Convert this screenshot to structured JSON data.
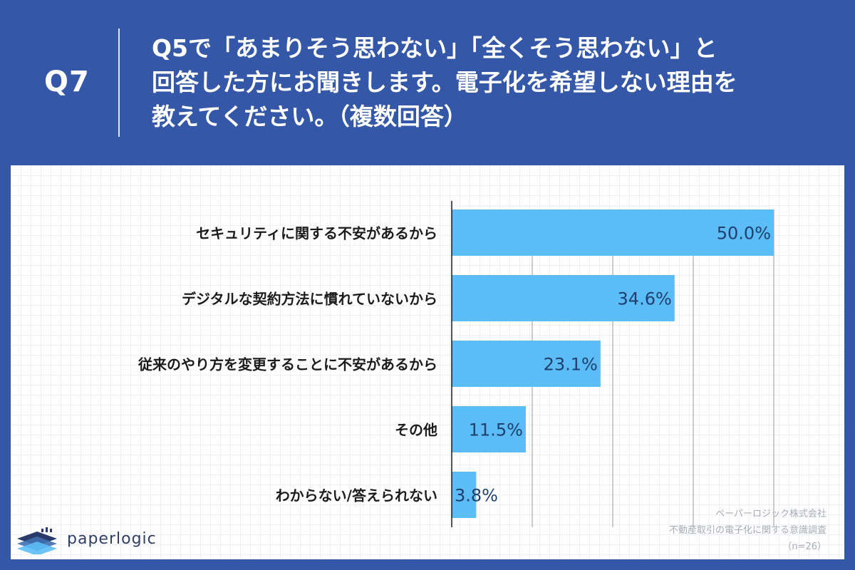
{
  "header": {
    "question_number": "Q7",
    "question_lines": [
      "Q5で「あまりそう思わない」「全くそう思わない」と",
      "回答した方にお聞きします。電子化を希望しない理由を",
      "教えてください。（複数回答）"
    ]
  },
  "chart_data": {
    "type": "bar",
    "orientation": "horizontal",
    "categories": [
      "セキュリティに関する不安があるから",
      "デジタルな契約方法に慣れていないから",
      "従来のやり方を変更することに不安があるから",
      "その他",
      "わからない/答えられない"
    ],
    "values": [
      50.0,
      34.6,
      23.1,
      11.5,
      3.8
    ],
    "value_labels": [
      "50.0%",
      "34.6%",
      "23.1%",
      "11.5%",
      "3.8%"
    ],
    "unit": "%",
    "xlim": [
      0,
      50
    ],
    "grid": true,
    "bar_color": "#5bbcf6",
    "label_color": "#1f3f6e"
  },
  "logo": {
    "text": "paperlogic"
  },
  "source": {
    "company": "ペーパーロジック株式会社",
    "survey": "不動産取引の電子化に関する意識調査",
    "sample": "（n=26）"
  },
  "colors": {
    "background": "#3457a8",
    "panel": "#ffffff",
    "bar": "#5bbcf6",
    "value_text": "#1f3f6e"
  }
}
